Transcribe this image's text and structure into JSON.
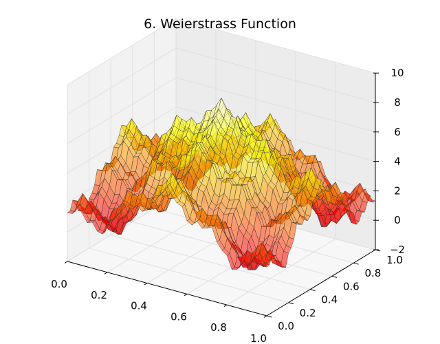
{
  "chart_data": {
    "type": "surface",
    "title": "6. Weierstrass Function",
    "xlabel": "",
    "ylabel": "",
    "zlabel": "",
    "xlim": [
      0.0,
      1.0
    ],
    "ylim": [
      0.0,
      1.0
    ],
    "zlim": [
      -2,
      10
    ],
    "x_ticks": [
      "0.0",
      "0.2",
      "0.4",
      "0.6",
      "0.8",
      "1.0"
    ],
    "y_ticks": [
      "0.0",
      "0.2",
      "0.4",
      "0.6",
      "0.8",
      "1.0"
    ],
    "z_ticks": [
      "−2",
      "0",
      "2",
      "4",
      "6",
      "8",
      "10"
    ],
    "grid": true,
    "colormap": "hot",
    "grid_resolution": 40,
    "surface_samples": [
      {
        "x": 0.0,
        "y": 0.0,
        "z": 0.0
      },
      {
        "x": 0.5,
        "y": 0.5,
        "z": 8.5
      },
      {
        "x": 1.0,
        "y": 1.0,
        "z": 0.0
      },
      {
        "x": 0.0,
        "y": 1.0,
        "z": 0.0
      },
      {
        "x": 1.0,
        "y": 0.0,
        "z": 0.0
      },
      {
        "x": 0.5,
        "y": 0.0,
        "z": 4.5
      },
      {
        "x": 0.0,
        "y": 0.5,
        "z": 4.5
      },
      {
        "x": 1.0,
        "y": 0.5,
        "z": 4.5
      },
      {
        "x": 0.5,
        "y": 1.0,
        "z": 4.5
      }
    ]
  },
  "colors": {
    "pane_left": "#f2f2f2",
    "pane_back": "#ececec",
    "pane_floor": "#f7f7f7",
    "grid": "#e0e0e0",
    "edge": "#333333"
  }
}
